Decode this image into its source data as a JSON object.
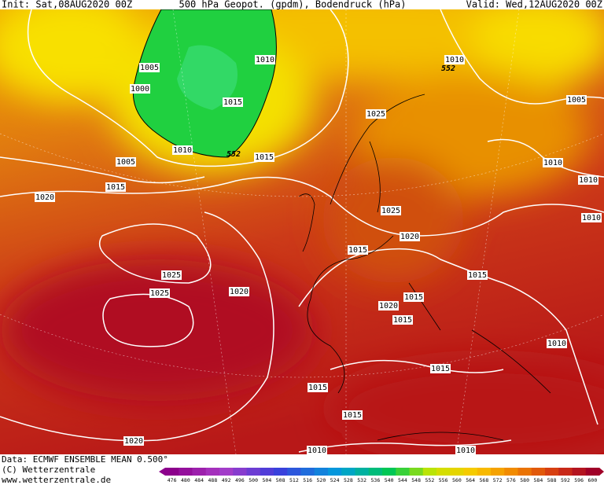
{
  "header": {
    "init": "Init: Sat,08AUG2020 00Z",
    "title": "500 hPa Geopot. (gpdm), Bodendruck (hPa)",
    "valid": "Valid: Wed,12AUG2020 00Z"
  },
  "map": {
    "isobar_labels": [
      "1005",
      "1000",
      "1010",
      "1015",
      "1010",
      "552",
      "1015",
      "1005",
      "1015",
      "1020",
      "1010",
      "552",
      "1005",
      "1025",
      "1010",
      "1010",
      "1025",
      "1020",
      "1010",
      "1015",
      "1025",
      "1020",
      "1015",
      "1025",
      "1015",
      "1020",
      "1015",
      "1010",
      "1015",
      "1015",
      "1015",
      "1020",
      "1010",
      "1010"
    ]
  },
  "footer": {
    "data": "Data: ECMWF ENSEMBLE MEAN 0.500°",
    "copyright": "(C) Wetterzentrale",
    "url": "www.wetterzentrale.de"
  },
  "colorbar": {
    "labels": [
      476,
      480,
      484,
      488,
      492,
      496,
      500,
      504,
      508,
      512,
      516,
      520,
      524,
      528,
      532,
      536,
      540,
      544,
      548,
      552,
      556,
      560,
      564,
      568,
      572,
      576,
      580,
      584,
      588,
      592,
      596,
      600
    ]
  }
}
